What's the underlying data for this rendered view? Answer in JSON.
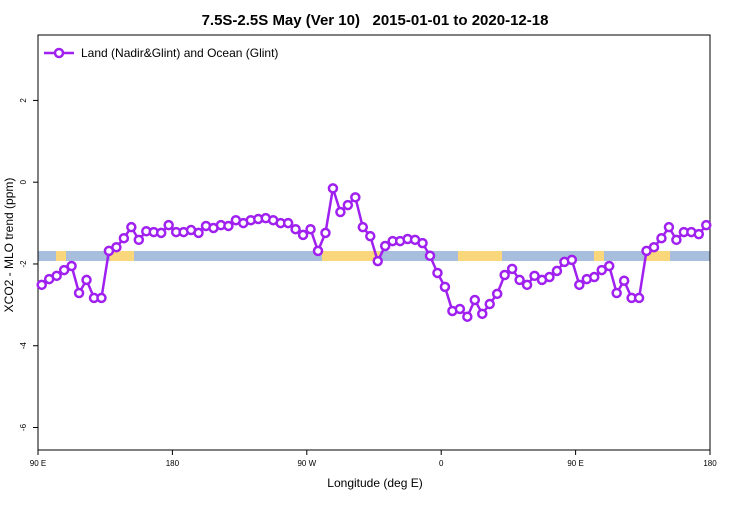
{
  "chart_data": {
    "type": "line",
    "title": "7.5S-2.5S May (Ver 10)   2015-01-01 to 2020-12-18",
    "xlabel": "Longitude (deg E)",
    "ylabel": "XCO2 - MLO trend (ppm)",
    "legend": "top-left",
    "xlim": [
      90,
      540
    ],
    "ylim": [
      -6.55,
      3.6
    ],
    "xticks": [
      {
        "value": 90,
        "label": "90 E"
      },
      {
        "value": 180,
        "label": "180"
      },
      {
        "value": 270,
        "label": "90 W"
      },
      {
        "value": 360,
        "label": "0"
      },
      {
        "value": 450,
        "label": "90 E"
      },
      {
        "value": 540,
        "label": "180"
      }
    ],
    "yticks": [
      -6,
      -4,
      -2,
      0,
      2
    ],
    "x": [
      92.5,
      97.5,
      102.5,
      107.5,
      112.5,
      117.5,
      122.5,
      127.5,
      132.5,
      137.5,
      142.5,
      147.5,
      152.5,
      157.5,
      162.5,
      167.5,
      172.5,
      177.5,
      182.5,
      187.5,
      192.5,
      197.5,
      202.5,
      207.5,
      212.5,
      217.5,
      222.5,
      227.5,
      232.5,
      237.5,
      242.5,
      247.5,
      252.5,
      257.5,
      262.5,
      267.5,
      272.5,
      277.5,
      282.5,
      287.5,
      292.5,
      297.5,
      302.5,
      307.5,
      312.5,
      317.5,
      322.5,
      327.5,
      332.5,
      337.5,
      342.5,
      347.5,
      352.5,
      357.5,
      362.5,
      367.5,
      372.5,
      377.5,
      382.5,
      387.5,
      392.5,
      397.5,
      402.5,
      407.5,
      412.5,
      417.5,
      422.5,
      427.5,
      432.5,
      437.5,
      442.5,
      447.5,
      452.5,
      457.5,
      462.5,
      467.5,
      472.5,
      477.5,
      482.5,
      487.5,
      492.5,
      497.5,
      502.5,
      507.5,
      512.5,
      517.5,
      522.5,
      527.5,
      532.5,
      537.5
    ],
    "series": [
      {
        "name": "Land (Nadir&Glint) and Ocean (Glint)",
        "color": "#a020f0",
        "values": [
          -2.51,
          -2.37,
          -2.29,
          -2.15,
          -2.05,
          -2.71,
          -2.39,
          -2.83,
          -2.83,
          -1.68,
          -1.59,
          -1.37,
          -1.1,
          -1.41,
          -1.2,
          -1.22,
          -1.24,
          -1.05,
          -1.22,
          -1.22,
          -1.17,
          -1.24,
          -1.07,
          -1.12,
          -1.05,
          -1.07,
          -0.93,
          -1.0,
          -0.93,
          -0.9,
          -0.88,
          -0.93,
          -1.0,
          -1.0,
          -1.15,
          -1.29,
          -1.15,
          -1.68,
          -1.24,
          -0.15,
          -0.73,
          -0.56,
          -0.37,
          -1.1,
          -1.32,
          -1.93,
          -1.56,
          -1.44,
          -1.44,
          -1.39,
          -1.41,
          -1.49,
          -1.8,
          -2.22,
          -2.56,
          -3.15,
          -3.1,
          -3.29,
          -2.88,
          -3.22,
          -2.98,
          -2.73,
          -2.27,
          -2.12,
          -2.39,
          -2.51,
          -2.29,
          -2.39,
          -2.32,
          -2.17,
          -1.95,
          -1.9,
          -2.51,
          -2.37,
          -2.32,
          -2.15,
          -2.05,
          -2.71,
          -2.41,
          -2.83,
          -2.83,
          -1.68,
          -1.59,
          -1.37,
          -1.1,
          -1.41,
          -1.22,
          -1.22,
          -1.27,
          -1.05
        ]
      }
    ]
  }
}
